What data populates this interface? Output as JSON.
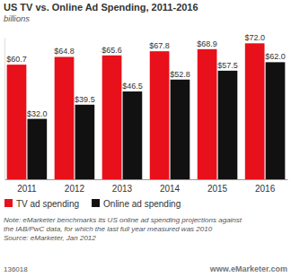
{
  "chart_data": {
    "type": "bar",
    "title": "US TV vs. Online Ad Spending, 2011-2016",
    "subtitle": "billions",
    "categories": [
      "2011",
      "2012",
      "2013",
      "2014",
      "2015",
      "2016"
    ],
    "series": [
      {
        "name": "TV ad spending",
        "color": "#e8101a",
        "values": [
          60.7,
          64.8,
          65.6,
          67.8,
          68.9,
          72.0
        ],
        "value_labels": [
          "$60.7",
          "$64.8",
          "$65.6",
          "$67.8",
          "$68.9",
          "$72.0"
        ]
      },
      {
        "name": "Online ad spending",
        "color": "#111111",
        "values": [
          32.0,
          39.5,
          46.5,
          52.8,
          57.5,
          62.0
        ],
        "value_labels": [
          "$32.0",
          "$39.5",
          "$46.5",
          "$52.8",
          "$57.5",
          "$62.0"
        ]
      }
    ],
    "ylim": [
      0,
      75
    ],
    "data_labels": true,
    "tick_labels": "x",
    "legend": "bottom",
    "notes": [
      "Note: eMarketer benchmarks its US online ad spending projections against",
      "the IAB/PwC data, for which the last full year measured was 2010"
    ],
    "source": "Source: eMarketer, Jan 2012",
    "chart_id": "136018",
    "credit": "www.eMarketer.com"
  }
}
